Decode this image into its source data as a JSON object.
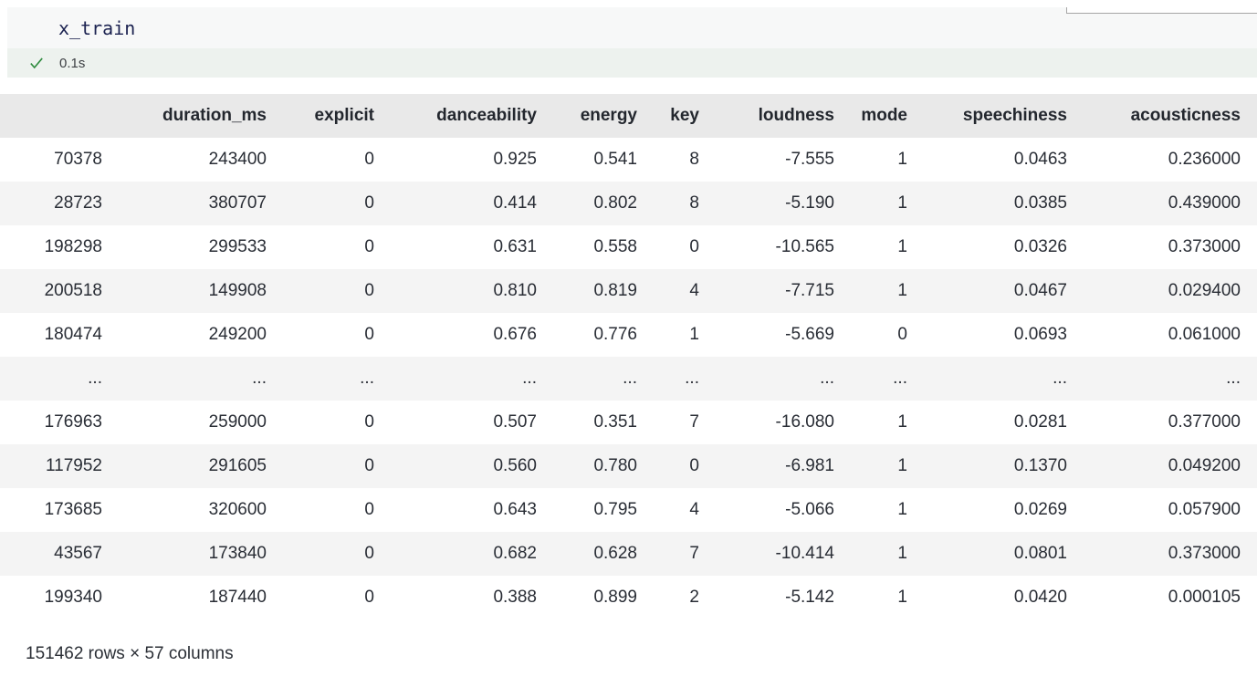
{
  "cell": {
    "code": "x_train",
    "status": {
      "icon": "success-check-icon",
      "execution_time": "0.1s"
    }
  },
  "colors": {
    "success_green": "#2e8b3e",
    "header_bg": "#e9e9e9",
    "stripe_bg": "#f4f4f4",
    "status_bar_bg": "#edf2ee",
    "code_bg": "#f7f8f8"
  },
  "table": {
    "columns": [
      "",
      "duration_ms",
      "explicit",
      "danceability",
      "energy",
      "key",
      "loudness",
      "mode",
      "speechiness",
      "acousticness"
    ],
    "rows": [
      [
        "70378",
        "243400",
        "0",
        "0.925",
        "0.541",
        "8",
        "-7.555",
        "1",
        "0.0463",
        "0.236000"
      ],
      [
        "28723",
        "380707",
        "0",
        "0.414",
        "0.802",
        "8",
        "-5.190",
        "1",
        "0.0385",
        "0.439000"
      ],
      [
        "198298",
        "299533",
        "0",
        "0.631",
        "0.558",
        "0",
        "-10.565",
        "1",
        "0.0326",
        "0.373000"
      ],
      [
        "200518",
        "149908",
        "0",
        "0.810",
        "0.819",
        "4",
        "-7.715",
        "1",
        "0.0467",
        "0.029400"
      ],
      [
        "180474",
        "249200",
        "0",
        "0.676",
        "0.776",
        "1",
        "-5.669",
        "0",
        "0.0693",
        "0.061000"
      ],
      [
        "...",
        "...",
        "...",
        "...",
        "...",
        "...",
        "...",
        "...",
        "...",
        "..."
      ],
      [
        "176963",
        "259000",
        "0",
        "0.507",
        "0.351",
        "7",
        "-16.080",
        "1",
        "0.0281",
        "0.377000"
      ],
      [
        "117952",
        "291605",
        "0",
        "0.560",
        "0.780",
        "0",
        "-6.981",
        "1",
        "0.1370",
        "0.049200"
      ],
      [
        "173685",
        "320600",
        "0",
        "0.643",
        "0.795",
        "4",
        "-5.066",
        "1",
        "0.0269",
        "0.057900"
      ],
      [
        "43567",
        "173840",
        "0",
        "0.682",
        "0.628",
        "7",
        "-10.414",
        "1",
        "0.0801",
        "0.373000"
      ],
      [
        "199340",
        "187440",
        "0",
        "0.388",
        "0.899",
        "2",
        "-5.142",
        "1",
        "0.0420",
        "0.000105"
      ]
    ],
    "summary": "151462 rows × 57 columns"
  }
}
